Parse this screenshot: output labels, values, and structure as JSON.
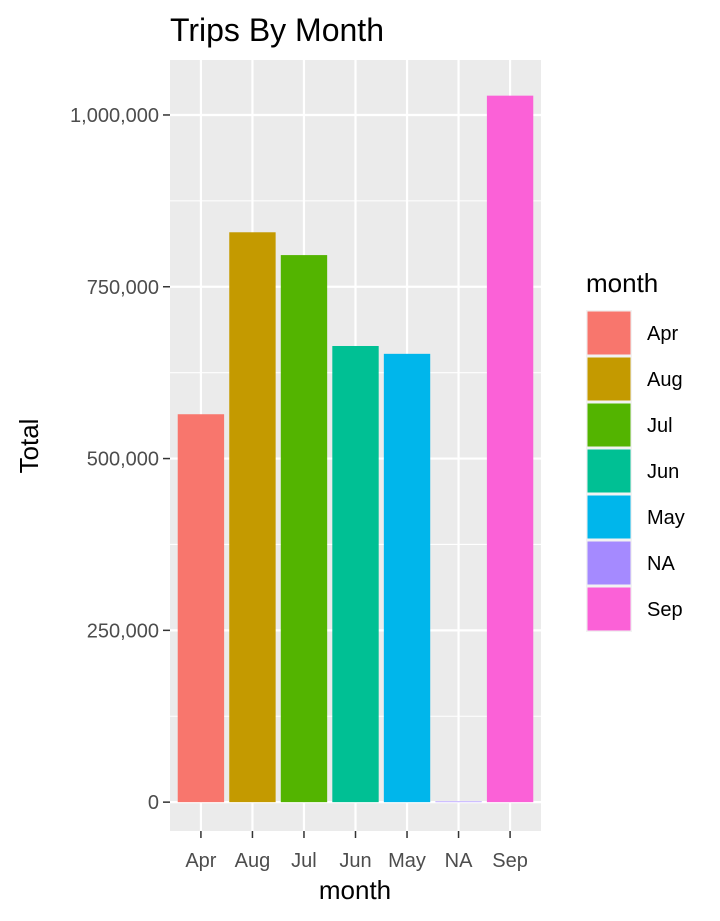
{
  "chart_data": {
    "type": "bar",
    "title": "Trips By Month",
    "xlabel": "month",
    "ylabel": "Total",
    "categories": [
      "Apr",
      "Aug",
      "Jul",
      "Jun",
      "May",
      "NA",
      "Sep"
    ],
    "values": [
      564500,
      829300,
      796100,
      663800,
      652400,
      1000,
      1028100
    ],
    "colors": [
      "#F8766D",
      "#C49A00",
      "#53B400",
      "#00C094",
      "#00B6EB",
      "#A58AFF",
      "#FB61D7"
    ],
    "ylim": [
      -42000,
      1080000
    ],
    "yticks": [
      0,
      250000,
      500000,
      750000,
      1000000
    ],
    "ytick_labels": [
      "0",
      "250,000",
      "500,000",
      "750,000",
      "1,000,000"
    ],
    "grid": true,
    "legend": {
      "title": "month",
      "position": "right",
      "entries": [
        "Apr",
        "Aug",
        "Jul",
        "Jun",
        "May",
        "NA",
        "Sep"
      ]
    }
  }
}
